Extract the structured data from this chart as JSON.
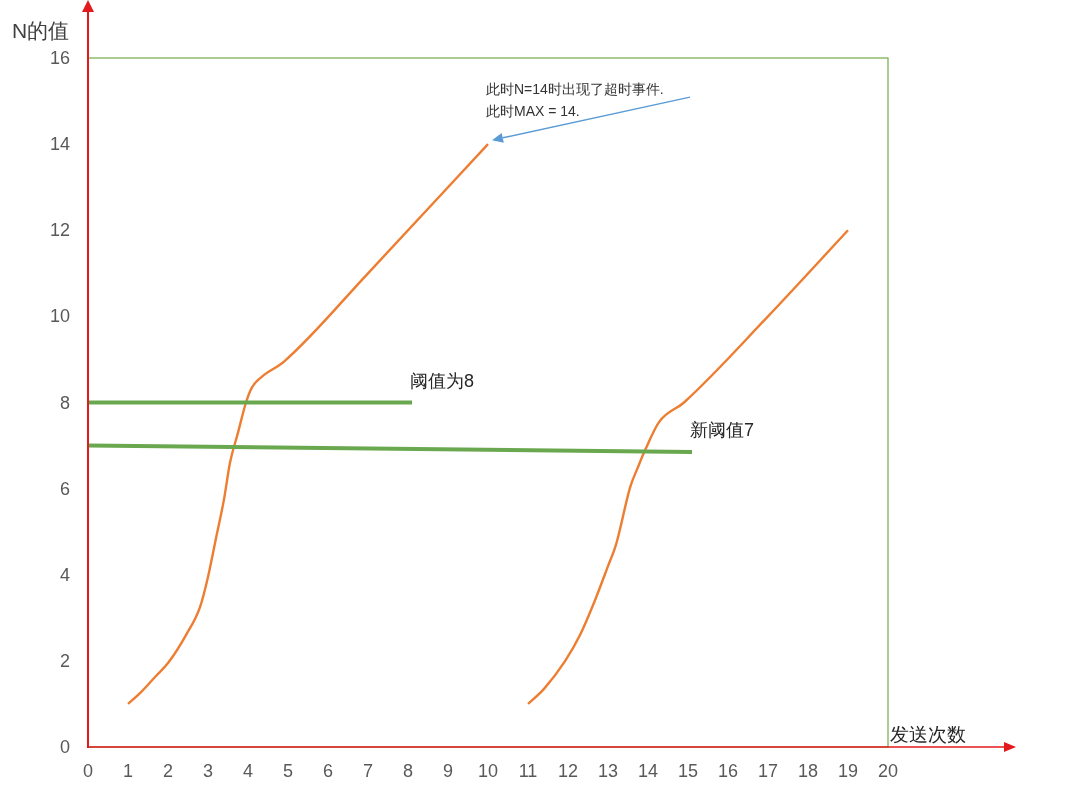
{
  "chart_data": {
    "type": "line",
    "xlabel": "发送次数",
    "ylabel": "N的值",
    "xlim": [
      0,
      20
    ],
    "ylim": [
      0,
      16
    ],
    "xticks": [
      0,
      1,
      2,
      3,
      4,
      5,
      6,
      7,
      8,
      9,
      10,
      11,
      12,
      13,
      14,
      15,
      16,
      17,
      18,
      19,
      20
    ],
    "yticks": [
      0,
      2,
      4,
      6,
      8,
      10,
      12,
      14,
      16
    ],
    "series": [
      {
        "color": "#ed7d31",
        "x": [
          1,
          1.3,
          1.7,
          2,
          2.45,
          2.8,
          3,
          3.2,
          3.4,
          3.55,
          3.75,
          3.95,
          4.1,
          4.35,
          4.9,
          7,
          10
        ],
        "values": [
          1,
          1.25,
          1.65,
          1.95,
          2.6,
          3.25,
          3.95,
          4.85,
          5.75,
          6.6,
          7.3,
          8,
          8.35,
          8.6,
          8.95,
          11,
          14
        ]
      },
      {
        "color": "#ed7d31",
        "x": [
          11,
          11.4,
          11.93,
          12.3,
          12.65,
          13,
          13.2,
          13.56,
          13.75,
          13.93,
          14.28,
          14.9,
          17,
          19
        ],
        "values": [
          1,
          1.35,
          2,
          2.6,
          3.35,
          4.2,
          4.7,
          6.05,
          6.5,
          6.9,
          7.55,
          8,
          10,
          12
        ]
      },
      {
        "name": "阈值为8",
        "color": "#6aa84f",
        "x": [
          0,
          8.1
        ],
        "values": [
          8,
          8
        ]
      },
      {
        "name": "新阈值7",
        "color": "#6aa84f",
        "x": [
          0,
          15.1
        ],
        "values": [
          7,
          6.85
        ]
      }
    ],
    "annotations": [
      {
        "text": "此时N=14时出现了超时事件.\n此时MAX = 14.",
        "x": 10,
        "y": 14
      }
    ],
    "grid": false,
    "legend": false,
    "marker": "none",
    "line_style": "solid"
  }
}
